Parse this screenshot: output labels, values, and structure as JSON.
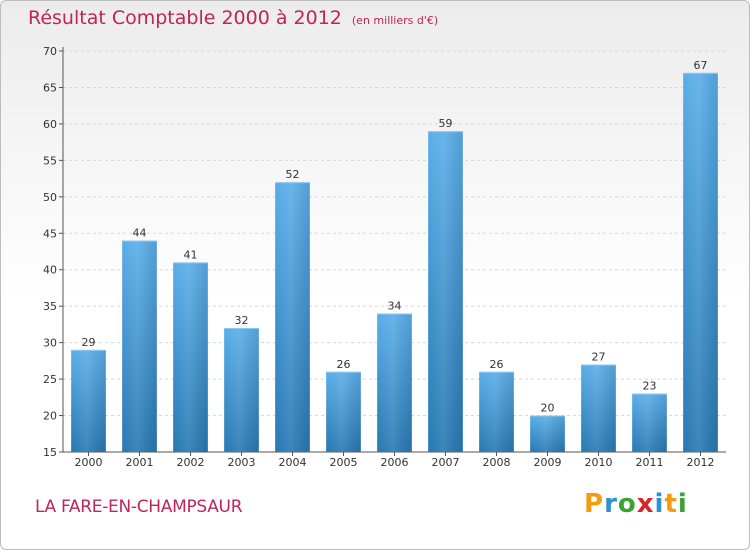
{
  "title": "Résultat Comptable 2000 à 2012",
  "subtitle": "(en milliers d'€)",
  "commune": "LA FARE-EN-CHAMPSAUR",
  "logo": {
    "text": "Proxiti",
    "letters": [
      {
        "char": "P",
        "color": "#f39c12"
      },
      {
        "char": "r",
        "color": "#2d8fd6"
      },
      {
        "char": "o",
        "color": "#3aa335"
      },
      {
        "char": "x",
        "color": "#d6262a"
      },
      {
        "char": "i",
        "color": "#2d8fd6"
      },
      {
        "char": "t",
        "color": "#f39c12"
      },
      {
        "char": "i",
        "color": "#3aa335"
      }
    ]
  },
  "colors": {
    "bar_top": "#5aade8",
    "bar_bottom": "#2778b3",
    "title": "#c0245a",
    "grid": "#d8d8d8"
  },
  "chart_data": {
    "type": "bar",
    "title": "Résultat Comptable 2000 à 2012",
    "subtitle": "(en milliers d'€)",
    "xlabel": "",
    "ylabel": "",
    "categories": [
      "2000",
      "2001",
      "2002",
      "2003",
      "2004",
      "2005",
      "2006",
      "2007",
      "2008",
      "2009",
      "2010",
      "2011",
      "2012"
    ],
    "values": [
      29,
      44,
      41,
      32,
      52,
      26,
      34,
      59,
      26,
      20,
      27,
      23,
      67
    ],
    "ylim": [
      15,
      70
    ],
    "yticks": [
      15,
      20,
      25,
      30,
      35,
      40,
      45,
      50,
      55,
      60,
      65,
      70
    ],
    "grid": true,
    "data_labels": true
  }
}
